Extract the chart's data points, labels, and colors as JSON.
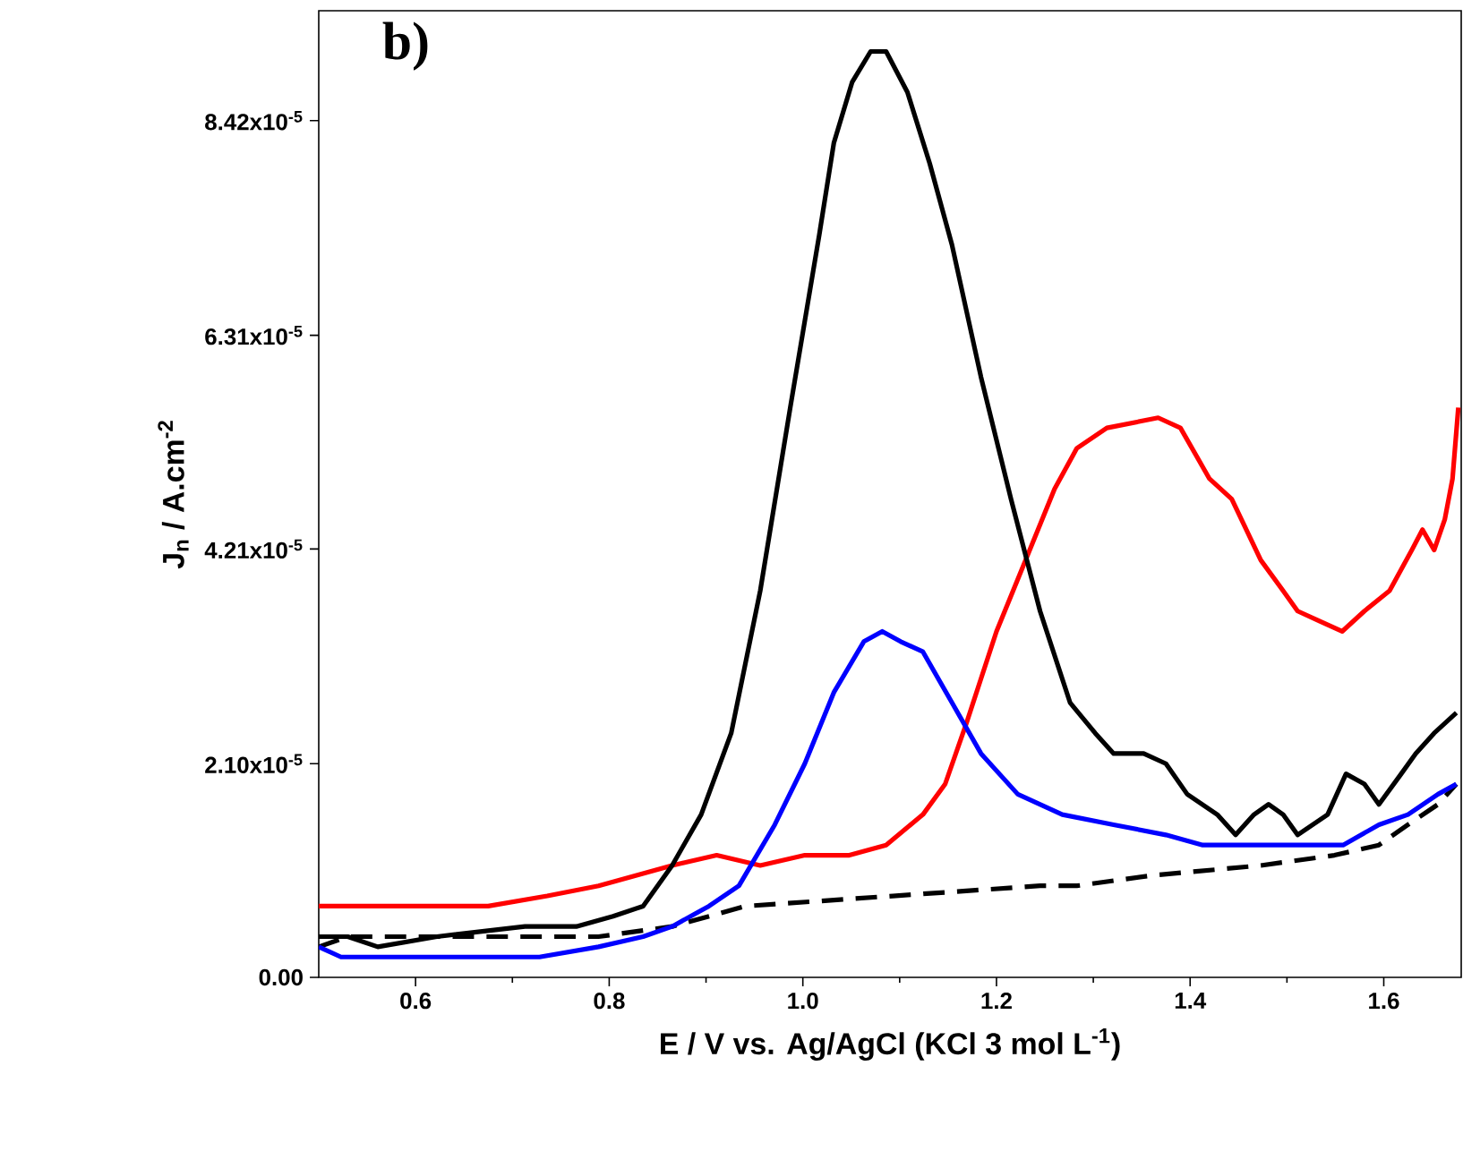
{
  "chart_data": {
    "type": "line",
    "xlabel": "E / V vs. Ag/AgCl (KCl 3 mol L$^{-1}$)",
    "ylabel": "J$_{n}$ / A.cm$^{-2}$",
    "annotations": [
      "b)"
    ],
    "xlim": [
      0.5,
      1.68
    ],
    "ylim": [
      0,
      9.5e-05
    ],
    "xticks": [
      {
        "value": 0.6,
        "label": "0.6"
      },
      {
        "value": 0.8,
        "label": "0.8"
      },
      {
        "value": 1.0,
        "label": "1.0"
      },
      {
        "value": 1.2,
        "label": "1.2"
      },
      {
        "value": 1.4,
        "label": "1.4"
      },
      {
        "value": 1.6,
        "label": "1.6"
      }
    ],
    "yticks": [
      {
        "value": 0,
        "label": "0.00"
      },
      {
        "value": 2.1e-05,
        "label": "2.10x10$^{-5}$"
      },
      {
        "value": 4.21e-05,
        "label": "4.21x10$^{-5}$"
      },
      {
        "value": 6.31e-05,
        "label": "6.31x10$^{-5}$"
      },
      {
        "value": 8.42e-05,
        "label": "8.42x10$^{-5}$"
      }
    ],
    "grid": false,
    "marker": "none",
    "series": [
      {
        "color": "#000000",
        "line_style": "dashed",
        "x": [
          0.5,
          0.53,
          0.637,
          0.789,
          0.865,
          0.941,
          1.093,
          1.245,
          1.283,
          1.359,
          1.473,
          1.549,
          1.595,
          1.625,
          1.656,
          1.675
        ],
        "values": [
          3e-06,
          4e-06,
          4e-06,
          4e-06,
          5e-06,
          7e-06,
          8e-06,
          9e-06,
          9e-06,
          1e-05,
          1.1e-05,
          1.2e-05,
          1.3e-05,
          1.5e-05,
          1.7e-05,
          1.9e-05
        ]
      },
      {
        "color": "#ff0000",
        "line_style": "solid",
        "x": [
          0.5,
          0.53,
          0.599,
          0.675,
          0.736,
          0.789,
          0.827,
          0.865,
          0.911,
          0.956,
          1.002,
          1.048,
          1.086,
          1.124,
          1.147,
          1.169,
          1.2,
          1.23,
          1.26,
          1.283,
          1.314,
          1.367,
          1.39,
          1.42,
          1.443,
          1.473,
          1.496,
          1.511,
          1.534,
          1.557,
          1.58,
          1.606,
          1.629,
          1.64,
          1.652,
          1.663,
          1.671,
          1.677
        ],
        "values": [
          7e-06,
          7e-06,
          7e-06,
          7e-06,
          8e-06,
          9e-06,
          1e-05,
          1.1e-05,
          1.2e-05,
          1.1e-05,
          1.2e-05,
          1.2e-05,
          1.3e-05,
          1.6e-05,
          1.9e-05,
          2.5e-05,
          3.4e-05,
          4.1e-05,
          4.8e-05,
          5.2e-05,
          5.4e-05,
          5.5e-05,
          5.4e-05,
          4.9e-05,
          4.7e-05,
          4.1e-05,
          3.8e-05,
          3.6e-05,
          3.5e-05,
          3.4e-05,
          3.6e-05,
          3.8e-05,
          4.2e-05,
          4.4e-05,
          4.2e-05,
          4.5e-05,
          4.9e-05,
          5.6e-05
        ]
      },
      {
        "color": "#0000ff",
        "line_style": "solid",
        "x": [
          0.5,
          0.523,
          0.637,
          0.728,
          0.789,
          0.835,
          0.865,
          0.903,
          0.934,
          0.971,
          1.002,
          1.032,
          1.063,
          1.082,
          1.101,
          1.124,
          1.154,
          1.184,
          1.222,
          1.268,
          1.321,
          1.375,
          1.413,
          1.451,
          1.512,
          1.558,
          1.595,
          1.625,
          1.656,
          1.675
        ],
        "values": [
          3e-06,
          2e-06,
          2e-06,
          2e-06,
          3e-06,
          4e-06,
          5e-06,
          7e-06,
          9e-06,
          1.5e-05,
          2.1e-05,
          2.8e-05,
          3.3e-05,
          3.4e-05,
          3.3e-05,
          3.2e-05,
          2.7e-05,
          2.2e-05,
          1.8e-05,
          1.6e-05,
          1.5e-05,
          1.4e-05,
          1.3e-05,
          1.3e-05,
          1.3e-05,
          1.3e-05,
          1.5e-05,
          1.6e-05,
          1.8e-05,
          1.9e-05
        ]
      },
      {
        "color": "#000000",
        "line_style": "solid",
        "x": [
          0.5,
          0.53,
          0.561,
          0.622,
          0.713,
          0.766,
          0.804,
          0.835,
          0.865,
          0.895,
          0.926,
          0.956,
          0.987,
          1.017,
          1.032,
          1.051,
          1.07,
          1.086,
          1.108,
          1.131,
          1.154,
          1.184,
          1.215,
          1.245,
          1.276,
          1.302,
          1.321,
          1.352,
          1.375,
          1.397,
          1.428,
          1.447,
          1.466,
          1.481,
          1.496,
          1.511,
          1.542,
          1.561,
          1.58,
          1.595,
          1.618,
          1.633,
          1.652,
          1.675
        ],
        "values": [
          4e-06,
          4e-06,
          3e-06,
          4e-06,
          5e-06,
          5e-06,
          6e-06,
          7e-06,
          1.1e-05,
          1.6e-05,
          2.4e-05,
          3.8e-05,
          5.6e-05,
          7.3e-05,
          8.2e-05,
          8.8e-05,
          9.1e-05,
          9.1e-05,
          8.7e-05,
          8e-05,
          7.2e-05,
          5.9e-05,
          4.7e-05,
          3.6e-05,
          2.7e-05,
          2.4e-05,
          2.2e-05,
          2.2e-05,
          2.1e-05,
          1.8e-05,
          1.6e-05,
          1.4e-05,
          1.6e-05,
          1.7e-05,
          1.6e-05,
          1.4e-05,
          1.6e-05,
          2e-05,
          1.9e-05,
          1.7e-05,
          2e-05,
          2.2e-05,
          2.4e-05,
          2.6e-05
        ]
      }
    ]
  }
}
